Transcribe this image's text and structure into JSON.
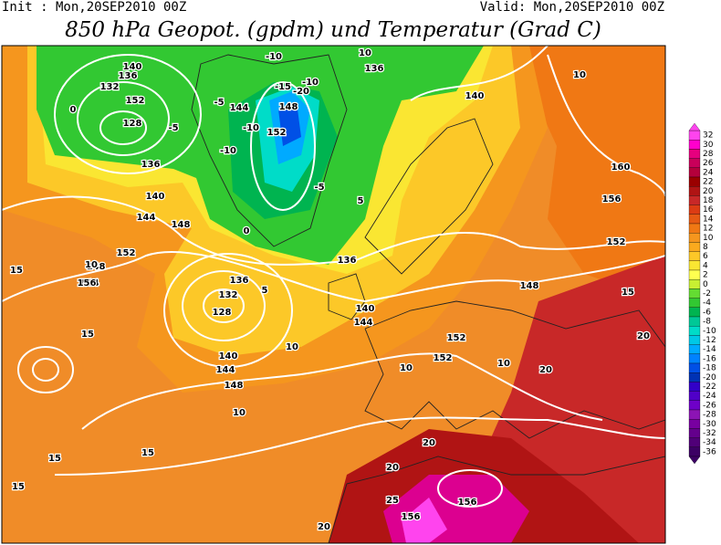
{
  "header": {
    "init": "Init : Mon,20SEP2010 00Z",
    "valid": "Valid: Mon,20SEP2010 00Z",
    "title": "850 hPa Geopot. (gpdm) und Temperatur (Grad C)"
  },
  "map": {
    "labels": [
      "140",
      "136",
      "132",
      "128",
      "136",
      "140",
      "144",
      "148",
      "152",
      "10",
      "-5",
      "-5",
      "-10",
      "-10",
      "-10",
      "-15",
      "-20",
      "-10",
      "-5",
      "0",
      "5",
      "144",
      "148",
      "152",
      "136",
      "132",
      "128",
      "140",
      "144",
      "148",
      "152",
      "148",
      "144",
      "156",
      "156",
      "160",
      "152",
      "148",
      "152",
      "152",
      "156",
      "15",
      "15",
      "15",
      "15",
      "15",
      "15",
      "10",
      "10",
      "10",
      "10",
      "20",
      "20",
      "20",
      "20",
      "25",
      "20",
      "156",
      "10",
      "5",
      "0",
      "140",
      "136",
      "144",
      "140",
      "136",
      "10"
    ]
  },
  "legend": {
    "values": [
      32,
      30,
      28,
      26,
      24,
      22,
      20,
      18,
      16,
      14,
      12,
      10,
      8,
      6,
      4,
      2,
      0,
      -2,
      -4,
      -6,
      -8,
      -10,
      -12,
      -14,
      -16,
      -18,
      -20,
      -22,
      -24,
      -26,
      -28,
      -30,
      -32,
      -34,
      -36
    ],
    "colors": [
      "#ff44ee",
      "#ff00cc",
      "#e6007e",
      "#c8005a",
      "#b4003c",
      "#9a0000",
      "#b01414",
      "#c82828",
      "#dc3c14",
      "#e65a14",
      "#f07814",
      "#f5961e",
      "#faaa1e",
      "#fcc828",
      "#fae632",
      "#ffff50",
      "#c8f032",
      "#64dc32",
      "#32c832",
      "#00b450",
      "#00c896",
      "#00dcc8",
      "#00c8e6",
      "#00aaff",
      "#0082ff",
      "#0050e6",
      "#0032b4",
      "#3200c8",
      "#5000c8",
      "#6e00c8",
      "#8c14b4",
      "#7800a0",
      "#64008c",
      "#500078",
      "#3c0064"
    ]
  }
}
